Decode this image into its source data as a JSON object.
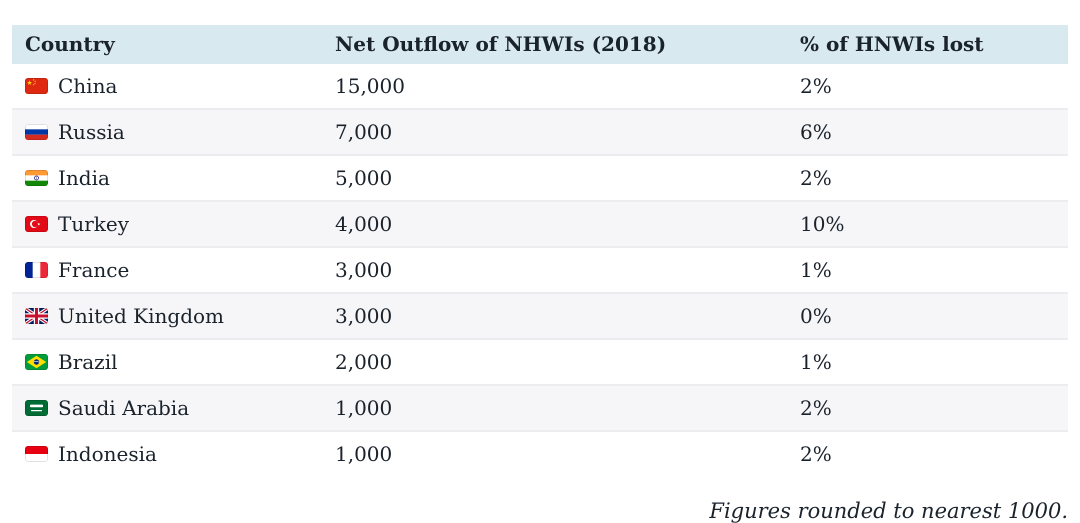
{
  "table": {
    "columns": [
      {
        "label": "Country"
      },
      {
        "label": "Net Outflow of NHWIs (2018)"
      },
      {
        "label": "% of HNWIs lost"
      }
    ],
    "rows": [
      {
        "country": "China",
        "flag": "china",
        "outflow": "15,000",
        "pct_lost": "2%"
      },
      {
        "country": "Russia",
        "flag": "russia",
        "outflow": "7,000",
        "pct_lost": "6%"
      },
      {
        "country": "India",
        "flag": "india",
        "outflow": "5,000",
        "pct_lost": "2%"
      },
      {
        "country": "Turkey",
        "flag": "turkey",
        "outflow": "4,000",
        "pct_lost": "10%"
      },
      {
        "country": "France",
        "flag": "france",
        "outflow": "3,000",
        "pct_lost": "1%"
      },
      {
        "country": "United Kingdom",
        "flag": "united-kingdom",
        "outflow": "3,000",
        "pct_lost": "0%"
      },
      {
        "country": "Brazil",
        "flag": "brazil",
        "outflow": "2,000",
        "pct_lost": "1%"
      },
      {
        "country": "Saudi Arabia",
        "flag": "saudi-arabia",
        "outflow": "1,000",
        "pct_lost": "2%"
      },
      {
        "country": "Indonesia",
        "flag": "indonesia",
        "outflow": "1,000",
        "pct_lost": "2%"
      }
    ]
  },
  "footnote": "Figures rounded to nearest 1000.",
  "colors": {
    "header_bg": "#d9e9f0",
    "row_bg": "#ffffff",
    "row_alt_bg": "#f6f6f8",
    "separator": "#ececee",
    "text": "#1a222c"
  }
}
